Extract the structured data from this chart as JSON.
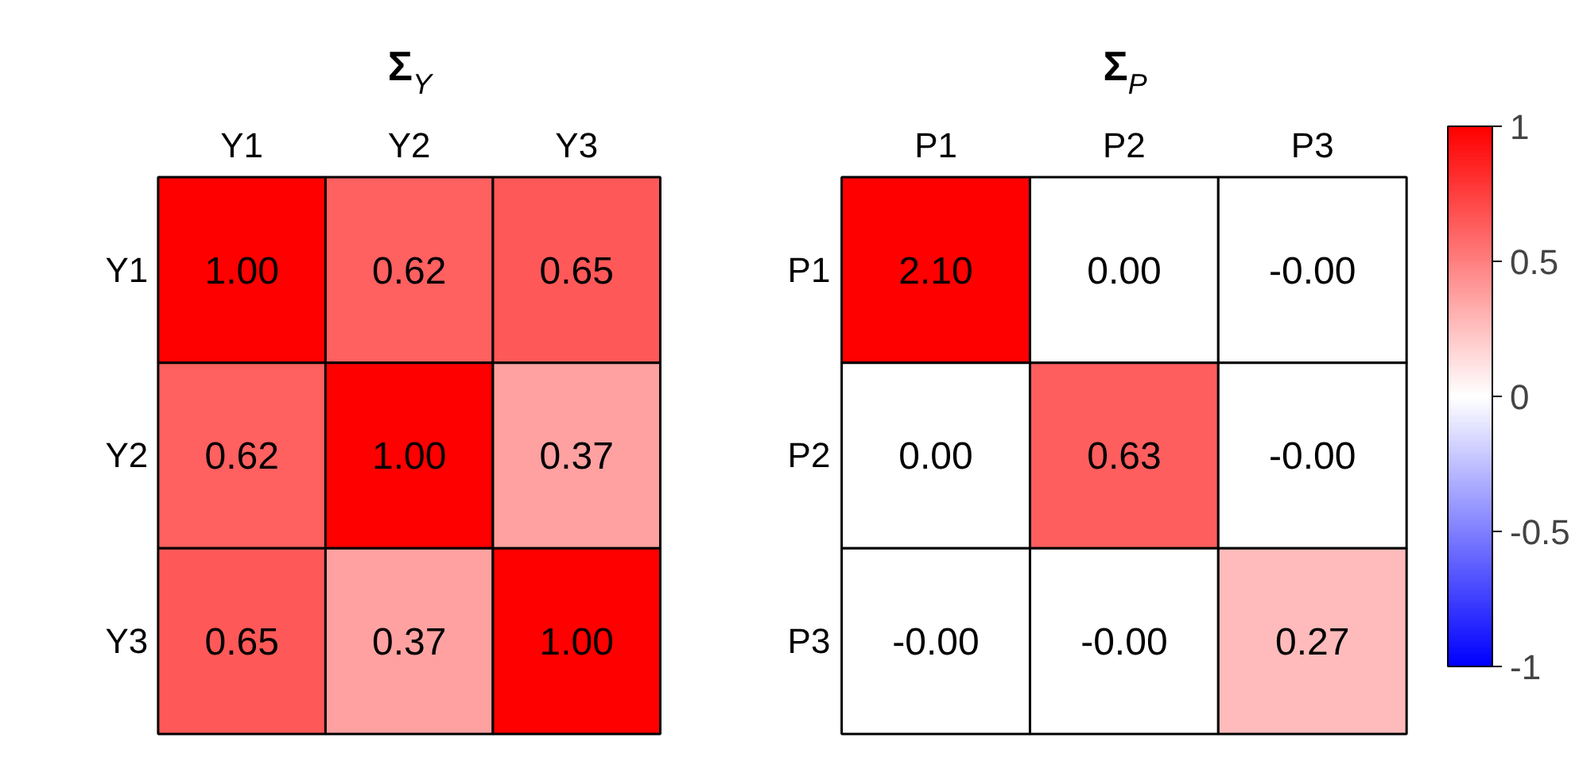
{
  "chart_data": [
    {
      "type": "heatmap",
      "title": "Σ$_{Y}$",
      "categories": [
        "Y1",
        "Y2",
        "Y3"
      ],
      "y_categories": [
        "Y1",
        "Y2",
        "Y3"
      ],
      "cells": [
        [
          1.0,
          0.62,
          0.65
        ],
        [
          0.62,
          1.0,
          0.37
        ],
        [
          0.65,
          0.37,
          1.0
        ]
      ],
      "cell_labels": [
        [
          "1.00",
          "0.62",
          "0.65"
        ],
        [
          "0.62",
          "1.00",
          "0.37"
        ],
        [
          "0.65",
          "0.37",
          "1.00"
        ]
      ]
    },
    {
      "type": "heatmap",
      "title": "Σ$_{P}$",
      "categories": [
        "P1",
        "P2",
        "P3"
      ],
      "y_categories": [
        "P1",
        "P2",
        "P3"
      ],
      "cells": [
        [
          2.1,
          0,
          0
        ],
        [
          0,
          0.63,
          0
        ],
        [
          0,
          0,
          0.27
        ]
      ],
      "cell_labels": [
        [
          "2.10",
          "0.00",
          "-0.00"
        ],
        [
          "0.00",
          "0.63",
          "-0.00"
        ],
        [
          "-0.00",
          "-0.00",
          "0.27"
        ]
      ],
      "clim": [
        -1,
        1
      ],
      "cticks": [
        -1,
        -0.5,
        0,
        0.5,
        1
      ]
    }
  ]
}
